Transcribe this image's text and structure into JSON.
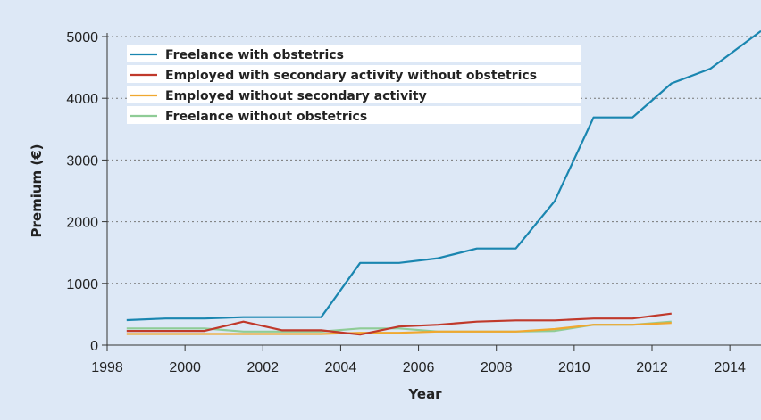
{
  "chart_data": {
    "type": "line",
    "xlabel": "Year",
    "ylabel": "Premium (€)",
    "xlim": [
      1998,
      2014.8
    ],
    "ylim": [
      0,
      5000
    ],
    "xticks": [
      1998,
      2000,
      2002,
      2004,
      2006,
      2008,
      2010,
      2012,
      2014
    ],
    "yticks": [
      0,
      1000,
      2000,
      3000,
      4000,
      5000
    ],
    "grid": "horizontal dotted",
    "legend_position": "top-left",
    "series": [
      {
        "name": "Freelance with obstetrics",
        "color": "#1a86b0",
        "x": [
          1998.5,
          1999.5,
          2000.5,
          2001.5,
          2002.5,
          2003.5,
          2004.5,
          2005.5,
          2006.5,
          2007.5,
          2008.5,
          2009.5,
          2010.5,
          2011.5,
          2012.5,
          2013.5,
          2014.8
        ],
        "y": [
          404,
          430,
          430,
          453,
          453,
          453,
          1333,
          1333,
          1408,
          1565,
          1565,
          2335,
          3689,
          3689,
          4242,
          4480,
          5091
        ]
      },
      {
        "name": "Employed with secondary activity without obstetrics",
        "color": "#c0392b",
        "x": [
          1998.5,
          1999.5,
          2000.5,
          2001.5,
          2002.5,
          2003.5,
          2004.5,
          2005.5,
          2006.5,
          2007.5,
          2008.5,
          2009.5,
          2010.5,
          2011.5,
          2012.5
        ],
        "y": [
          230,
          230,
          230,
          380,
          240,
          240,
          170,
          300,
          330,
          380,
          400,
          400,
          430,
          430,
          510
        ]
      },
      {
        "name": "Employed without secondary activity",
        "color": "#f0a830",
        "x": [
          1998.5,
          1999.5,
          2000.5,
          2001.5,
          2002.5,
          2003.5,
          2004.5,
          2005.5,
          2006.5,
          2007.5,
          2008.5,
          2009.5,
          2010.5,
          2011.5,
          2012.5
        ],
        "y": [
          180,
          180,
          180,
          180,
          180,
          180,
          200,
          200,
          220,
          220,
          220,
          260,
          330,
          330,
          360
        ]
      },
      {
        "name": "Freelance without obstetrics",
        "color": "#8fcc96",
        "x": [
          1998.5,
          1999.5,
          2000.5,
          2001.5,
          2002.5,
          2003.5,
          2004.5,
          2005.5,
          2006.5,
          2007.5,
          2008.5,
          2009.5,
          2010.5,
          2011.5,
          2012.5
        ],
        "y": [
          270,
          270,
          270,
          220,
          220,
          220,
          270,
          270,
          220,
          220,
          220,
          230,
          330,
          330,
          380
        ]
      }
    ]
  }
}
